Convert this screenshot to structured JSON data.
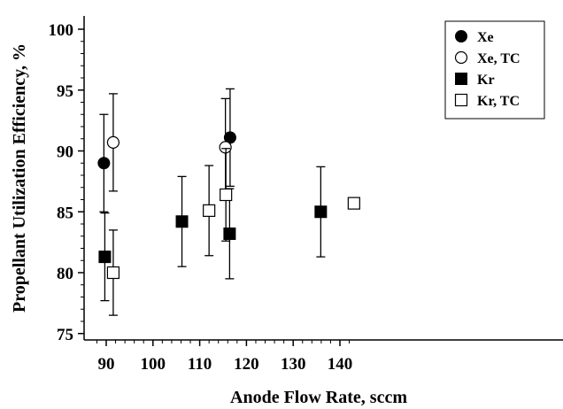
{
  "chart_data": {
    "type": "scatter",
    "title": "",
    "xlabel": "Anode Flow Rate, sccm",
    "ylabel": "Propellant Utilization Efficiency, %",
    "xlim": [
      88,
      143
    ],
    "ylim": [
      74,
      100
    ],
    "xticks": [
      90,
      100,
      110,
      120,
      130,
      140
    ],
    "yticks": [
      75,
      80,
      85,
      90,
      95,
      100
    ],
    "grid": false,
    "legend_position": "top-right",
    "series": [
      {
        "name": "Xe",
        "marker": "filled-circle",
        "points": [
          {
            "x": 89.5,
            "y": 89.0,
            "err": 4.0
          },
          {
            "x": 116.5,
            "y": 91.1,
            "err": 4.0
          }
        ]
      },
      {
        "name": "Xe, TC",
        "marker": "open-circle",
        "points": [
          {
            "x": 91.5,
            "y": 90.7,
            "err": 4.0
          },
          {
            "x": 115.5,
            "y": 90.3,
            "err": 4.0
          }
        ]
      },
      {
        "name": "Kr",
        "marker": "filled-square",
        "points": [
          {
            "x": 89.7,
            "y": 81.3,
            "err": 3.6
          },
          {
            "x": 106.2,
            "y": 84.2,
            "err": 3.7
          },
          {
            "x": 116.4,
            "y": 83.2,
            "err": 3.7
          },
          {
            "x": 135.9,
            "y": 85.0,
            "err": 3.7
          }
        ]
      },
      {
        "name": "Kr, TC",
        "marker": "open-square",
        "points": [
          {
            "x": 91.5,
            "y": 80.0,
            "err": 3.5
          },
          {
            "x": 112.0,
            "y": 85.1,
            "err": 3.7
          },
          {
            "x": 115.6,
            "y": 86.4,
            "err": 3.8
          },
          {
            "x": 143.0,
            "y": 85.7,
            "err": 0
          }
        ]
      }
    ]
  }
}
